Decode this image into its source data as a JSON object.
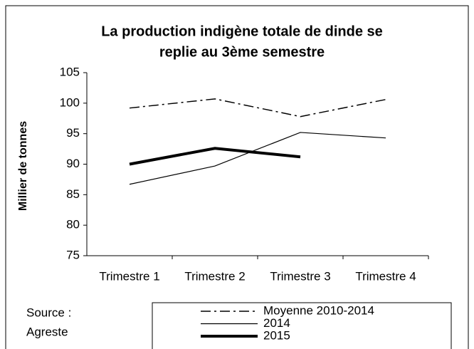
{
  "chart_data": {
    "type": "line",
    "title": [
      "La production indigène totale de dinde se",
      "replie au 3ème semestre"
    ],
    "y_label": "Millier de tonnes",
    "categories": [
      "Trimestre 1",
      "Trimestre 2",
      "Trimestre 3",
      "Trimestre 4"
    ],
    "series": [
      {
        "name": "Moyenne 2010-2014",
        "color": "#000000",
        "style": "dashdot",
        "width": 1.5,
        "values": [
          99.2,
          100.7,
          97.8,
          100.6
        ]
      },
      {
        "name": "2014",
        "color": "#000000",
        "style": "solid",
        "width": 1.2,
        "values": [
          86.7,
          89.7,
          95.2,
          94.3
        ]
      },
      {
        "name": "2015",
        "color": "#000000",
        "style": "solid",
        "width": 4,
        "values": [
          90.0,
          92.6,
          91.2,
          null
        ]
      }
    ],
    "ylim": [
      75,
      105
    ],
    "yticks": [
      75,
      80,
      85,
      90,
      95,
      100,
      105
    ],
    "grid": false,
    "source": [
      "Source :",
      "Agreste"
    ]
  }
}
